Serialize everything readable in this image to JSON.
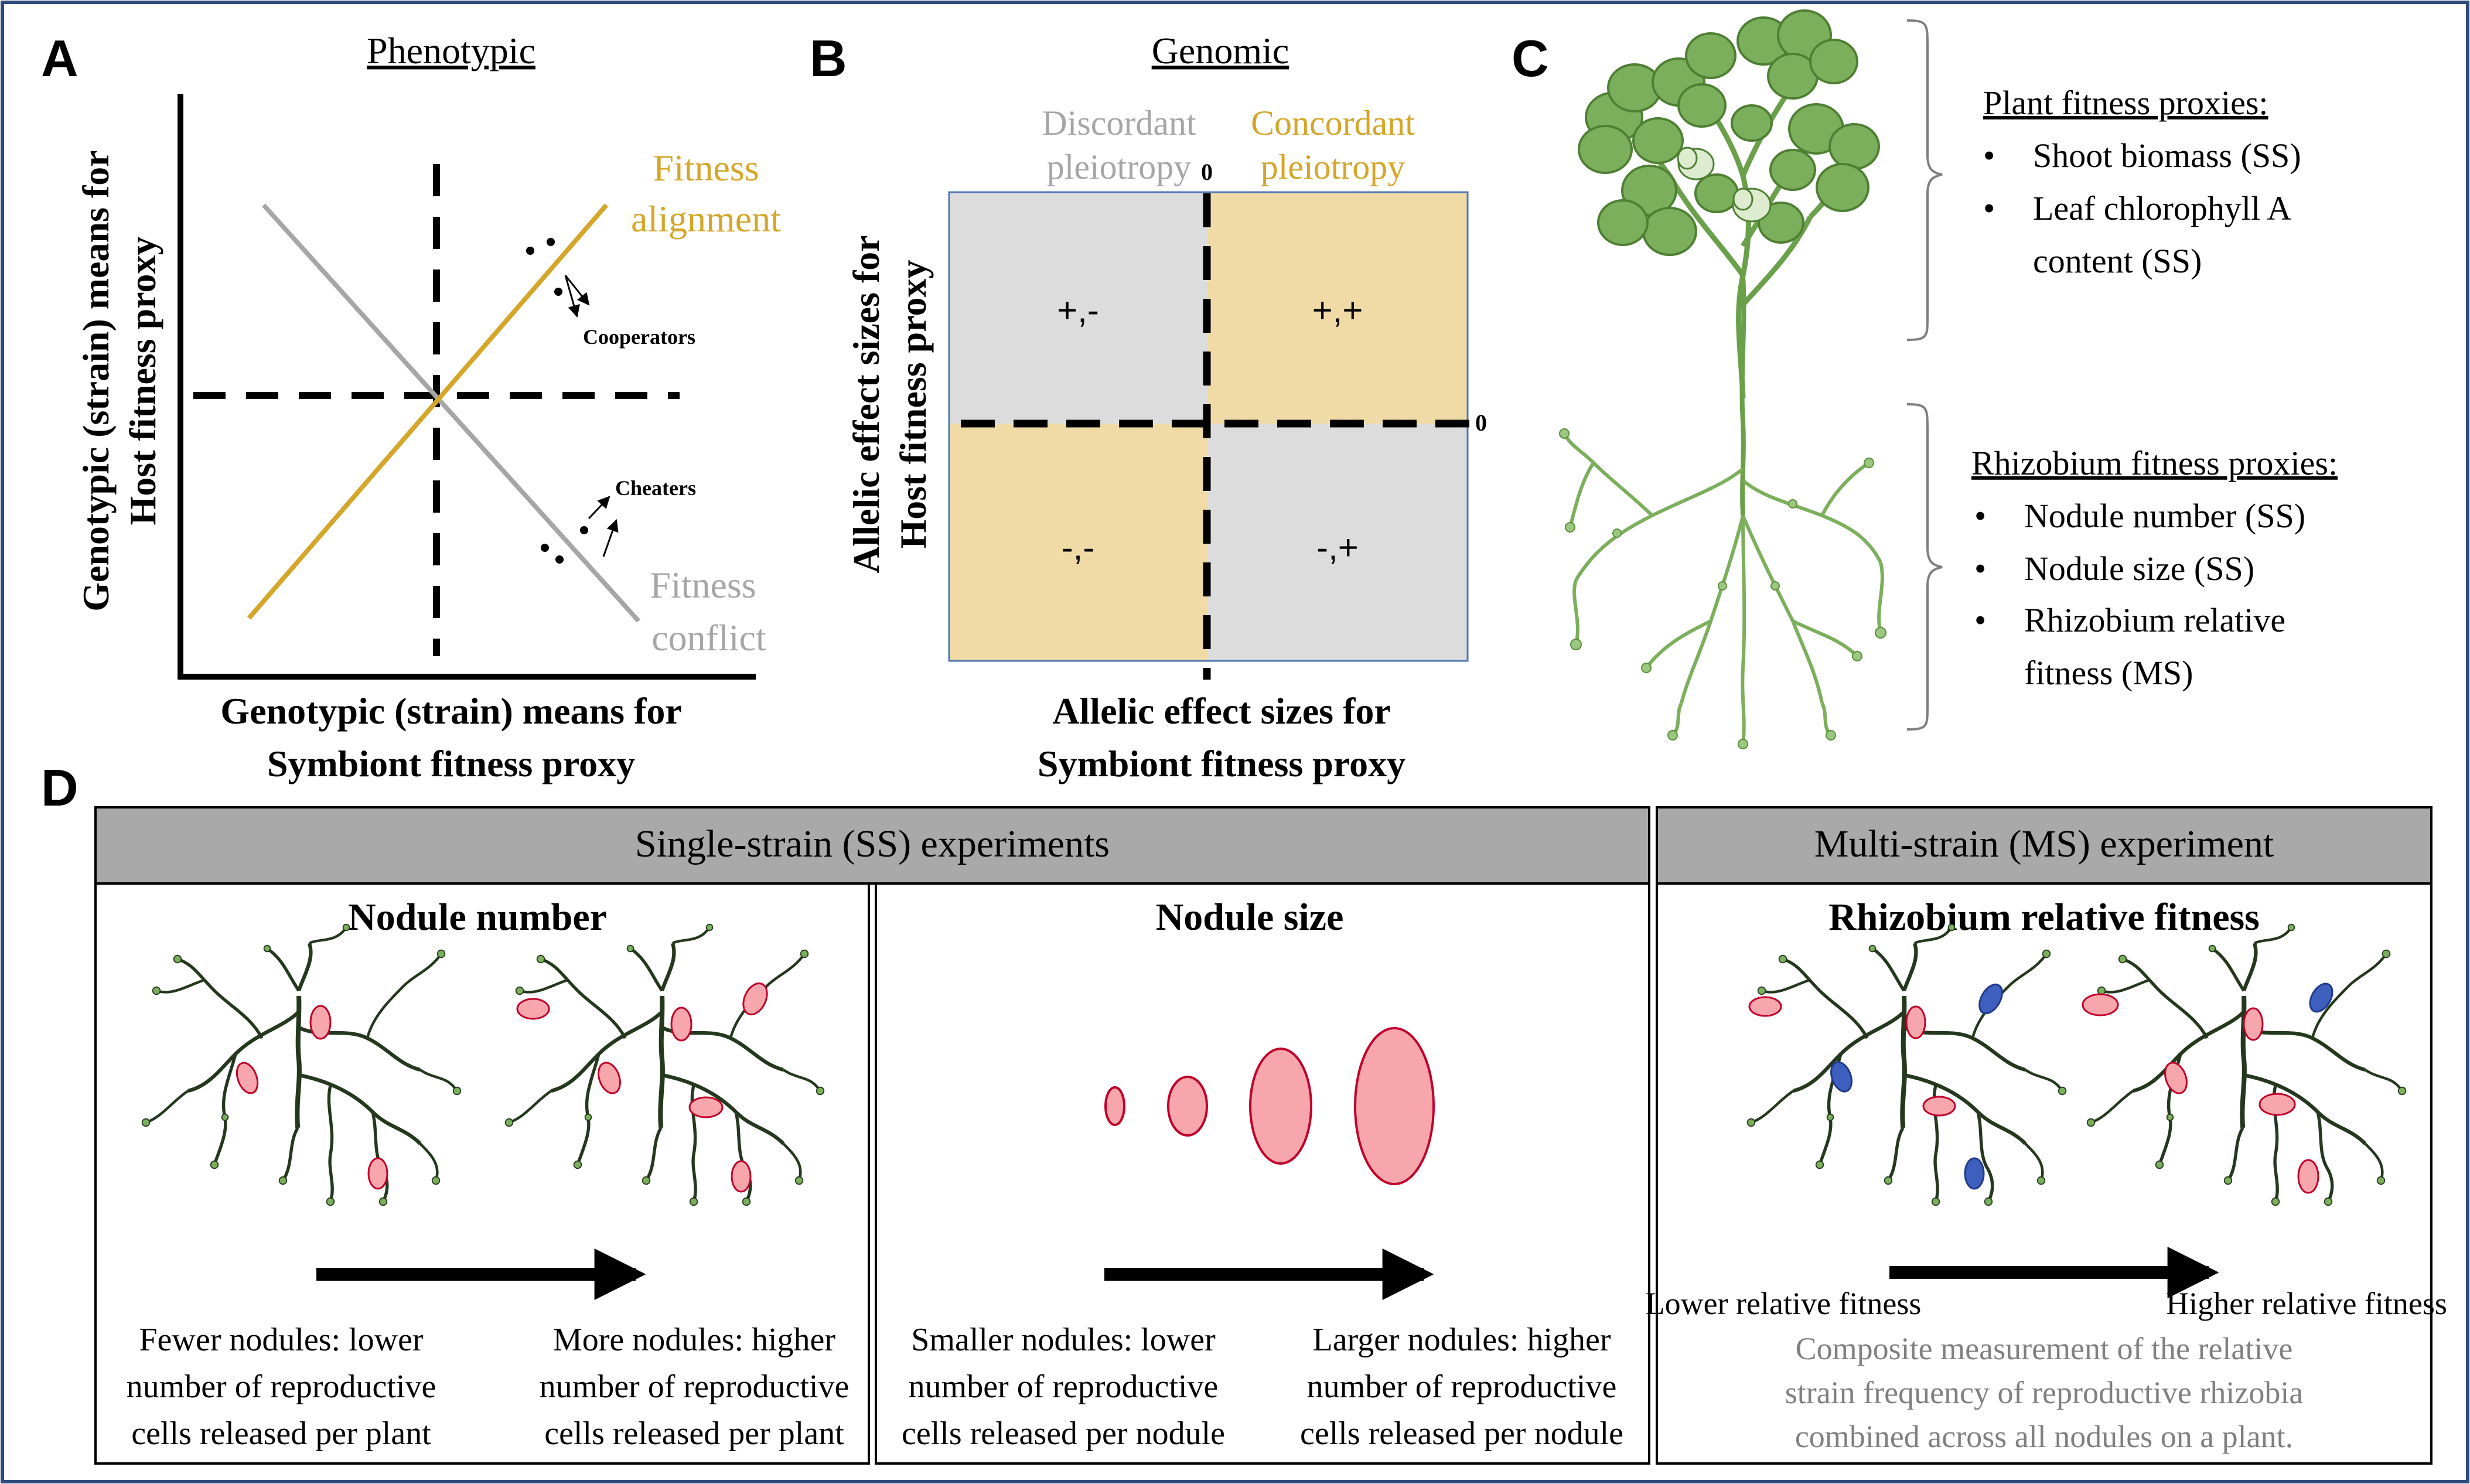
{
  "panelA": {
    "letter": "A",
    "title": "Phenotypic",
    "ylabel_line1": "Genotypic (strain) means for",
    "ylabel_line2": "Host fitness proxy",
    "xlabel_line1": "Genotypic (strain) means for",
    "xlabel_line2": "Symbiont fitness proxy",
    "alignment_line1": "Fitness",
    "alignment_line2": "alignment",
    "conflict_line1": "Fitness",
    "conflict_line2": "conflict",
    "cooperators": "Cooperators",
    "cheaters": "Cheaters"
  },
  "panelB": {
    "letter": "B",
    "title": "Genomic",
    "discordant_line1": "Discordant",
    "discordant_line2": "pleiotropy",
    "concordant_line1": "Concordant",
    "concordant_line2": "pleiotropy",
    "zero_top": "0",
    "zero_right": "0",
    "q_top_left": "+,-",
    "q_top_right": "+,+",
    "q_bottom_left": "-,-",
    "q_bottom_right": "-,+",
    "ylabel_line1": "Allelic effect sizes for",
    "ylabel_line2": "Host fitness proxy",
    "xlabel_line1": "Allelic effect sizes for",
    "xlabel_line2": "Symbiont fitness proxy"
  },
  "panelC": {
    "letter": "C",
    "plant_heading": "Plant fitness proxies:",
    "plant_items": [
      "Shoot biomass (SS)",
      "Leaf chlorophyll A",
      "content (SS)"
    ],
    "rhizo_heading": "Rhizobium fitness proxies:",
    "rhizo_items": [
      "Nodule number (SS)",
      "Nodule size (SS)",
      "Rhizobium relative",
      "fitness (MS)"
    ],
    "bullet": "•"
  },
  "panelD": {
    "letter": "D",
    "ss_header": "Single-strain (SS) experiments",
    "ms_header": "Multi-strain (MS) experiment",
    "nodule_number": {
      "title": "Nodule number",
      "left_caption": [
        "Fewer nodules: lower",
        "number of reproductive",
        "cells released per plant"
      ],
      "right_caption": [
        "More nodules: higher",
        "number of reproductive",
        "cells released per plant"
      ]
    },
    "nodule_size": {
      "title": "Nodule size",
      "left_caption": [
        "Smaller nodules: lower",
        "number of reproductive",
        "cells released per nodule"
      ],
      "right_caption": [
        "Larger nodules: higher",
        "number of reproductive",
        "cells released per nodule"
      ]
    },
    "relative_fitness": {
      "title": "Rhizobium relative fitness",
      "left_label": "Lower relative fitness",
      "right_label": "Higher relative fitness",
      "composite": [
        "Composite measurement of the relative",
        "strain frequency of reproductive rhizobia",
        "combined across all nodules on a plant."
      ]
    }
  },
  "colors": {
    "alignment": "#D4A62A",
    "conflict": "#A6A6A6",
    "concordant_fill": "#F0DBA6",
    "discordant_fill": "#DCDCDC",
    "header_fill": "#A9A9A9",
    "nodule_red_fill": "#F7A6AC",
    "nodule_red_stroke": "#C0002A",
    "nodule_blue": "#3F5FBF",
    "plant_green": "#7CAF5C",
    "root_dark": "#24381E",
    "border_blue": "#2E4A7A"
  }
}
